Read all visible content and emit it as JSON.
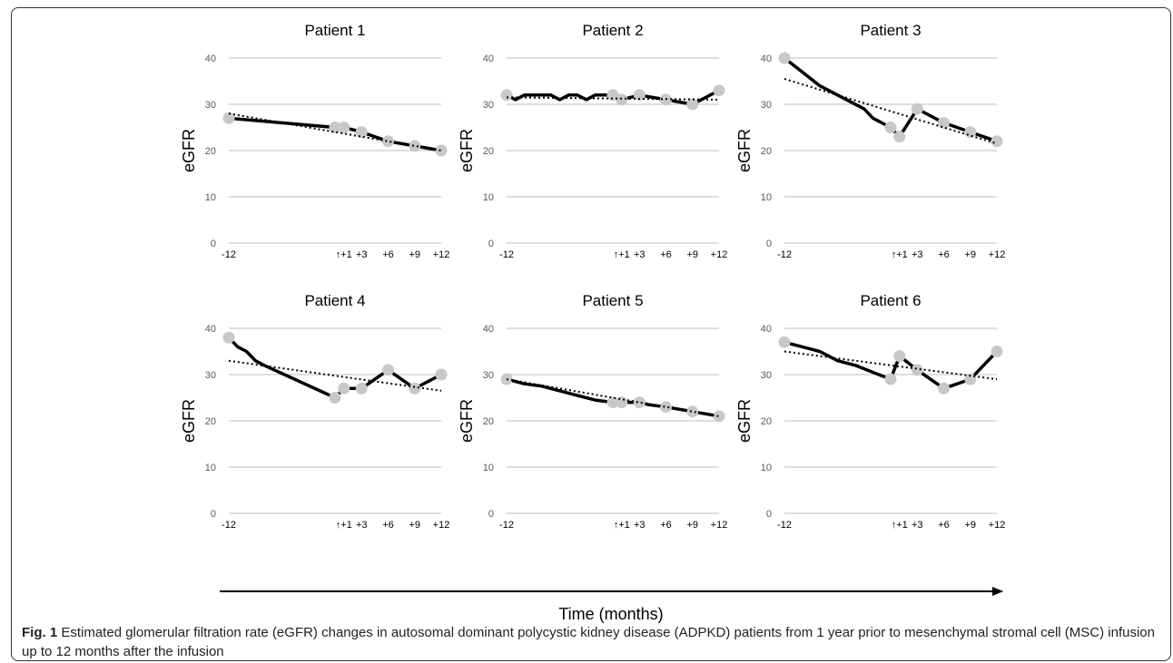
{
  "figure": {
    "fig_label": "Fig. 1",
    "caption": " Estimated glomerular filtration rate (eGFR) changes in autosomal dominant polycystic kidney disease (ADPKD) patients from 1 year prior to mesenchymal stromal cell (MSC) infusion up to 12 months after the infusion",
    "time_axis_label": "Time (months)"
  },
  "colors": {
    "line": "#000000",
    "marker": "#c8c8c8",
    "grid": "#bdbdbd"
  },
  "chart_data": [
    {
      "type": "line",
      "title": "Patient 1",
      "ylabel": "eGFR",
      "ylim": [
        0,
        40
      ],
      "yticks": [
        0,
        10,
        20,
        30,
        40
      ],
      "xtick_positions": [
        -12,
        1,
        3,
        6,
        9,
        12
      ],
      "xtick_labels": [
        "-12",
        "↑+1",
        "+3",
        "+6",
        "+9",
        "+12"
      ],
      "x": [
        -12,
        0,
        1,
        3,
        6,
        9,
        12
      ],
      "values": [
        27,
        25,
        25,
        24,
        22,
        21,
        20
      ],
      "markers": [
        [
          -12,
          27
        ],
        [
          0,
          25
        ],
        [
          1,
          25
        ],
        [
          3,
          24
        ],
        [
          6,
          22
        ],
        [
          9,
          21
        ],
        [
          12,
          20
        ]
      ],
      "trend": [
        28,
        20
      ]
    },
    {
      "type": "line",
      "title": "Patient 2",
      "ylabel": "eGFR",
      "ylim": [
        0,
        40
      ],
      "yticks": [
        0,
        10,
        20,
        30,
        40
      ],
      "xtick_positions": [
        -12,
        1,
        3,
        6,
        9,
        12
      ],
      "xtick_labels": [
        "-12",
        "↑+1",
        "+3",
        "+6",
        "+9",
        "+12"
      ],
      "x": [
        -12,
        -11,
        -10,
        -9,
        -8,
        -7,
        -6,
        -5,
        -4,
        -3,
        -2,
        -1,
        0,
        1,
        3,
        6,
        9,
        12
      ],
      "values": [
        32,
        31,
        32,
        32,
        32,
        32,
        31,
        32,
        32,
        31,
        32,
        32,
        32,
        31,
        32,
        31,
        30,
        33
      ],
      "markers": [
        [
          -12,
          32
        ],
        [
          0,
          32
        ],
        [
          1,
          31
        ],
        [
          3,
          32
        ],
        [
          6,
          31
        ],
        [
          9,
          30
        ],
        [
          12,
          33
        ]
      ],
      "trend": [
        31.5,
        31
      ]
    },
    {
      "type": "line",
      "title": "Patient 3",
      "ylabel": "eGFR",
      "ylim": [
        0,
        40
      ],
      "yticks": [
        0,
        10,
        20,
        30,
        40
      ],
      "xtick_positions": [
        -12,
        1,
        3,
        6,
        9,
        12
      ],
      "xtick_labels": [
        "-12",
        "↑+1",
        "+3",
        "+6",
        "+9",
        "+12"
      ],
      "x": [
        -12,
        -8,
        -5,
        -3,
        -2,
        0,
        1,
        3,
        6,
        9,
        12
      ],
      "values": [
        40,
        34,
        31,
        29,
        27,
        25,
        23,
        29,
        26,
        24,
        22
      ],
      "markers": [
        [
          -12,
          40
        ],
        [
          0,
          25
        ],
        [
          1,
          23
        ],
        [
          3,
          29
        ],
        [
          6,
          26
        ],
        [
          9,
          24
        ],
        [
          12,
          22
        ]
      ],
      "trend": [
        35.5,
        21.5
      ]
    },
    {
      "type": "line",
      "title": "Patient 4",
      "ylabel": "eGFR",
      "ylim": [
        0,
        40
      ],
      "yticks": [
        0,
        10,
        20,
        30,
        40
      ],
      "xtick_positions": [
        -12,
        1,
        3,
        6,
        9,
        12
      ],
      "xtick_labels": [
        "-12",
        "↑+1",
        "+3",
        "+6",
        "+9",
        "+12"
      ],
      "x": [
        -12,
        -11,
        -10,
        -9,
        -8,
        0,
        1,
        3,
        6,
        9,
        12
      ],
      "values": [
        38,
        36,
        35,
        33,
        32,
        25,
        27,
        27,
        31,
        27,
        30
      ],
      "markers": [
        [
          -12,
          38
        ],
        [
          0,
          25
        ],
        [
          1,
          27
        ],
        [
          3,
          27
        ],
        [
          6,
          31
        ],
        [
          9,
          27
        ],
        [
          12,
          30
        ]
      ],
      "trend": [
        33,
        26.5
      ]
    },
    {
      "type": "line",
      "title": "Patient 5",
      "ylabel": "eGFR",
      "ylim": [
        0,
        40
      ],
      "yticks": [
        0,
        10,
        20,
        30,
        40
      ],
      "xtick_positions": [
        -12,
        1,
        3,
        6,
        9,
        12
      ],
      "xtick_labels": [
        "-12",
        "↑+1",
        "+3",
        "+6",
        "+9",
        "+12"
      ],
      "x": [
        -12,
        -10,
        -8,
        -6,
        -4,
        -2,
        0,
        1,
        3,
        4,
        6,
        9,
        12
      ],
      "values": [
        29,
        28,
        27.5,
        26.5,
        25.5,
        24.5,
        24,
        24,
        24,
        23.5,
        23,
        22,
        21
      ],
      "markers": [
        [
          -12,
          29
        ],
        [
          0,
          24
        ],
        [
          1,
          24
        ],
        [
          3,
          24
        ],
        [
          6,
          23
        ],
        [
          9,
          22
        ],
        [
          12,
          21
        ]
      ],
      "trend": [
        29,
        21
      ]
    },
    {
      "type": "line",
      "title": "Patient 6",
      "ylabel": "eGFR",
      "ylim": [
        0,
        40
      ],
      "yticks": [
        0,
        10,
        20,
        30,
        40
      ],
      "xtick_positions": [
        -12,
        1,
        3,
        6,
        9,
        12
      ],
      "xtick_labels": [
        "-12",
        "↑+1",
        "+3",
        "+6",
        "+9",
        "+12"
      ],
      "x": [
        -12,
        -8,
        -6,
        -4,
        -2,
        0,
        1,
        3,
        6,
        9,
        12
      ],
      "values": [
        37,
        35,
        33,
        32,
        30.5,
        29,
        34,
        31,
        27,
        29,
        35
      ],
      "markers": [
        [
          -12,
          37
        ],
        [
          0,
          29
        ],
        [
          1,
          34
        ],
        [
          3,
          31
        ],
        [
          6,
          27
        ],
        [
          9,
          29
        ],
        [
          12,
          35
        ]
      ],
      "trend": [
        35,
        29
      ]
    }
  ]
}
